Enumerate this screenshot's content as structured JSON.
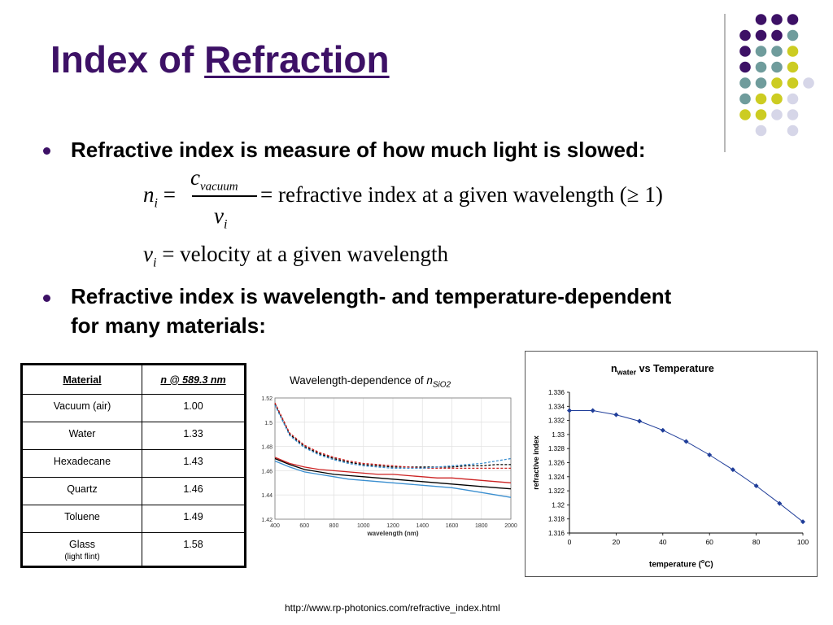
{
  "title": {
    "prefix": "Index of ",
    "underlined": "Refraction"
  },
  "bullets": [
    {
      "text": "Refractive index is measure of how much light is slowed:"
    },
    {
      "text": "Refractive index is wavelength- and temperature-dependent for many materials:"
    }
  ],
  "equation1": {
    "lhs": "n",
    "lhs_sub": "i",
    "num": "c",
    "num_sub": "vacuum",
    "den": "v",
    "den_sub": "i",
    "rhs": "= refractive index at a given wavelength (≥ 1)"
  },
  "equation2": {
    "lhs": "v",
    "lhs_sub": "i",
    "rhs": "= velocity at a given wavelength"
  },
  "table": {
    "headers": [
      "Material",
      "n @ 589.3 nm"
    ],
    "rows": [
      {
        "material": "Vacuum (air)",
        "note": "",
        "n": "1.00"
      },
      {
        "material": "Water",
        "note": "",
        "n": "1.33"
      },
      {
        "material": "Hexadecane",
        "note": "",
        "n": "1.43"
      },
      {
        "material": "Quartz",
        "note": "",
        "n": "1.46"
      },
      {
        "material": "Toluene",
        "note": "",
        "n": "1.49"
      },
      {
        "material": "Glass",
        "note": "(light flint)",
        "n": "1.58"
      }
    ]
  },
  "source": "http://www.rp-photonics.com/refractive_index.html",
  "decor_colors": {
    "purple": "#3d1166",
    "teal": "#6f9c9c",
    "yellow": "#cccc22",
    "lavender": "#d6d6e8"
  },
  "chart_data": [
    {
      "type": "line",
      "title_prefix": "Wavelength-dependence of ",
      "title_n": "n",
      "title_sub": "SiO2",
      "xlabel": "wavelength (nm)",
      "ylabel": "",
      "xlim": [
        400,
        2000
      ],
      "ylim": [
        1.42,
        1.52
      ],
      "xticks": [
        "400",
        "600",
        "800",
        "1000",
        "1200",
        "1400",
        "1600",
        "1800",
        "2000"
      ],
      "yticks": [
        "1.42",
        "1.44",
        "1.46",
        "1.48",
        "1.5",
        "1.52"
      ],
      "x": [
        400,
        500,
        600,
        700,
        800,
        900,
        1000,
        1100,
        1200,
        1300,
        1400,
        1500,
        1600,
        1700,
        1800,
        1900,
        2000
      ],
      "series": [
        {
          "color": "#000000",
          "dash": false,
          "values": [
            1.47,
            1.465,
            1.461,
            1.459,
            1.457,
            1.456,
            1.455,
            1.454,
            1.453,
            1.452,
            1.451,
            1.45,
            1.449,
            1.448,
            1.447,
            1.446,
            1.445
          ]
        },
        {
          "color": "#cc2222",
          "dash": false,
          "values": [
            1.471,
            1.466,
            1.463,
            1.461,
            1.46,
            1.459,
            1.458,
            1.457,
            1.457,
            1.456,
            1.455,
            1.454,
            1.454,
            1.453,
            1.452,
            1.451,
            1.45
          ]
        },
        {
          "color": "#3b8fd0",
          "dash": false,
          "values": [
            1.468,
            1.463,
            1.459,
            1.457,
            1.455,
            1.453,
            1.452,
            1.451,
            1.45,
            1.449,
            1.448,
            1.447,
            1.446,
            1.444,
            1.442,
            1.44,
            1.438
          ]
        },
        {
          "color": "#000000",
          "dash": true,
          "values": [
            1.515,
            1.49,
            1.48,
            1.474,
            1.47,
            1.467,
            1.465,
            1.464,
            1.463,
            1.463,
            1.463,
            1.463,
            1.463,
            1.464,
            1.464,
            1.465,
            1.465
          ]
        },
        {
          "color": "#cc2222",
          "dash": true,
          "values": [
            1.516,
            1.491,
            1.481,
            1.475,
            1.471,
            1.468,
            1.466,
            1.465,
            1.464,
            1.463,
            1.462,
            1.462,
            1.462,
            1.462,
            1.462,
            1.462,
            1.462
          ]
        },
        {
          "color": "#3b8fd0",
          "dash": true,
          "values": [
            1.514,
            1.489,
            1.479,
            1.473,
            1.469,
            1.466,
            1.464,
            1.463,
            1.462,
            1.462,
            1.462,
            1.463,
            1.464,
            1.465,
            1.466,
            1.468,
            1.47
          ]
        }
      ]
    },
    {
      "type": "line",
      "title_n": "n",
      "title_sub": "water",
      "title_suffix": " vs Temperature",
      "xlabel_prefix": "temperature (",
      "xlabel_sup": "o",
      "xlabel_suffix": "C)",
      "ylabel": "refractive index",
      "xlim": [
        0,
        100
      ],
      "ylim": [
        1.316,
        1.336
      ],
      "xticks": [
        "0",
        "20",
        "40",
        "60",
        "80",
        "100"
      ],
      "yticks": [
        "1.316",
        "1.318",
        "1.32",
        "1.322",
        "1.324",
        "1.326",
        "1.328",
        "1.33",
        "1.332",
        "1.334",
        "1.336"
      ],
      "series": [
        {
          "color": "#1f3d99",
          "x": [
            0,
            10,
            20,
            30,
            40,
            50,
            60,
            70,
            80,
            90,
            100
          ],
          "values": [
            1.3334,
            1.3334,
            1.3328,
            1.3319,
            1.3306,
            1.329,
            1.3271,
            1.325,
            1.3227,
            1.3202,
            1.3176
          ]
        }
      ]
    }
  ]
}
